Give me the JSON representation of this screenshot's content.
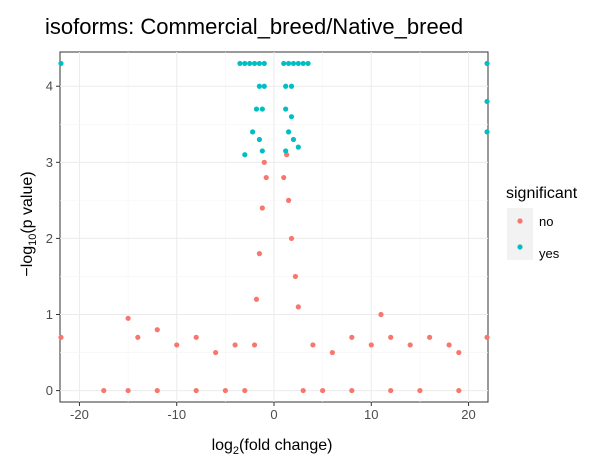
{
  "chart_data": {
    "type": "scatter",
    "title": "isoforms: Commercial_breed/Native_breed",
    "xlabel_main": "log",
    "xlabel_sub": "2",
    "xlabel_rest": "(fold change)",
    "ylabel_main": "−log",
    "ylabel_sub": "10",
    "ylabel_rest": "(p value)",
    "xlim": [
      -22,
      22
    ],
    "ylim": [
      -0.15,
      4.45
    ],
    "xticks": [
      -20,
      -10,
      0,
      10,
      20
    ],
    "yticks": [
      0,
      1,
      2,
      3,
      4
    ],
    "grid": true,
    "legend_position": "right",
    "legend": {
      "title": "significant",
      "entries": [
        {
          "label": "no",
          "color": "#F8766D"
        },
        {
          "label": "yes",
          "color": "#00BFC4"
        }
      ]
    },
    "series": [
      {
        "name": "no",
        "color": "#F8766D",
        "points": [
          [
            -17.5,
            0
          ],
          [
            -15,
            0
          ],
          [
            -12,
            0
          ],
          [
            -8,
            0
          ],
          [
            -5,
            0
          ],
          [
            -3,
            0
          ],
          [
            3,
            0
          ],
          [
            5,
            0
          ],
          [
            8,
            0
          ],
          [
            12,
            0
          ],
          [
            15,
            0
          ],
          [
            19,
            0
          ],
          [
            -21.9,
            0.7
          ],
          [
            21.9,
            0.7
          ],
          [
            -15,
            0.95
          ],
          [
            -14,
            0.7
          ],
          [
            -12,
            0.8
          ],
          [
            -10,
            0.6
          ],
          [
            -8,
            0.7
          ],
          [
            -6,
            0.5
          ],
          [
            -4,
            0.6
          ],
          [
            -2,
            0.6
          ],
          [
            -1.8,
            1.2
          ],
          [
            -1.5,
            1.8
          ],
          [
            -1.2,
            2.4
          ],
          [
            -1.0,
            3.0
          ],
          [
            -0.8,
            2.8
          ],
          [
            1.0,
            2.8
          ],
          [
            1.3,
            3.1
          ],
          [
            1.5,
            2.5
          ],
          [
            1.8,
            2.0
          ],
          [
            2.2,
            1.5
          ],
          [
            2.5,
            1.1
          ],
          [
            4,
            0.6
          ],
          [
            6,
            0.5
          ],
          [
            8,
            0.7
          ],
          [
            10,
            0.6
          ],
          [
            11,
            1.0
          ],
          [
            12,
            0.7
          ],
          [
            14,
            0.6
          ],
          [
            16,
            0.7
          ],
          [
            18,
            0.6
          ],
          [
            19,
            0.5
          ]
        ]
      },
      {
        "name": "yes",
        "color": "#00BFC4",
        "points": [
          [
            -3.5,
            4.3
          ],
          [
            -3,
            4.3
          ],
          [
            -2.5,
            4.3
          ],
          [
            -2,
            4.3
          ],
          [
            -1.5,
            4.3
          ],
          [
            -1,
            4.3
          ],
          [
            1,
            4.3
          ],
          [
            1.5,
            4.3
          ],
          [
            2,
            4.3
          ],
          [
            2.5,
            4.3
          ],
          [
            3,
            4.3
          ],
          [
            3.5,
            4.3
          ],
          [
            -1.5,
            4.0
          ],
          [
            -1,
            4.0
          ],
          [
            1.2,
            4.0
          ],
          [
            1.8,
            4.0
          ],
          [
            -1.8,
            3.7
          ],
          [
            -1.2,
            3.7
          ],
          [
            1.2,
            3.7
          ],
          [
            1.8,
            3.6
          ],
          [
            -2.2,
            3.4
          ],
          [
            -1.5,
            3.3
          ],
          [
            1.5,
            3.4
          ],
          [
            2,
            3.3
          ],
          [
            -3,
            3.1
          ],
          [
            -1.2,
            3.15
          ],
          [
            1.2,
            3.15
          ],
          [
            2.5,
            3.2
          ],
          [
            -21.9,
            4.3
          ],
          [
            21.9,
            4.3
          ],
          [
            21.9,
            3.8
          ],
          [
            21.9,
            3.4
          ]
        ]
      }
    ]
  }
}
